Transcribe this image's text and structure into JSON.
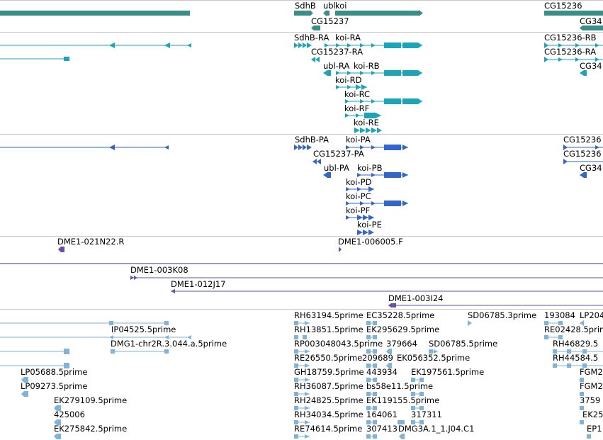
{
  "colors": {
    "gene": "#3a8e8a",
    "transcript": "#1aa6b8",
    "protein": "#3366cc",
    "clone": "#6a4ea6",
    "est": "#7fb3da",
    "separator": "#c8c8c8"
  },
  "tracks": {
    "genes": {
      "labels": [
        "SdhB",
        "ubl",
        "koi",
        "CG15237",
        "CG15236",
        "CG34"
      ]
    },
    "transcripts": {
      "labels": [
        "SdhB-RA",
        "koi-RA",
        "CG15237-RA",
        "ubl-RA",
        "koi-RB",
        "koi-RD",
        "koi-RC",
        "koi-RF",
        "koi-RE",
        "CG15236-RB",
        "CG15236-RA",
        "CG34"
      ]
    },
    "proteins": {
      "labels": [
        "SdhB-PA",
        "koi-PA",
        "CG15237-PA",
        "ubl-PA",
        "koi-PB",
        "koi-PD",
        "koi-PC",
        "koi-PF",
        "koi-PE",
        "CG15236",
        "CG15236",
        "CG34"
      ]
    },
    "clone_ends": {
      "labels": [
        "DME1-021N22.R",
        "DME1-006005.F"
      ]
    },
    "clones": {
      "labels": [
        "DME1-003K08",
        "DME1-012J17",
        "DME1-003I24"
      ]
    },
    "ests": {
      "labels": [
        "RH63194.5prime",
        "EC35228.5prime",
        "SD06785.3prime",
        "193084",
        "LP204",
        "IP04525.5prime",
        "RH13851.5prime",
        "EK295629.5prime",
        "RE02428.5prime",
        "DMG1-chr2R.3.044.a.5prime",
        "RP003048043.5prime",
        "379664",
        "SD06785.5prime",
        "RH46829.5",
        "RE26550.5prime",
        "209689",
        "EK056352.5prime",
        "RH44584.5",
        "LP05688.5prime",
        "GH18759.5prime",
        "443934",
        "EK197561.5prime",
        "FGM2",
        "LP09273.5prime",
        "RH36087.5prime",
        "bs58e11.5prime",
        "FGM2",
        "EK279109.5prime",
        "RH24825.5prime",
        "EK119155.5prime",
        "3759",
        "425006",
        "RH34034.5prime",
        "164061",
        "317311",
        "EK25",
        "EK275842.5prime",
        "RE74614.5prime",
        "307413",
        "DMG3A.1_1.J04.C1",
        "EP1"
      ]
    }
  }
}
